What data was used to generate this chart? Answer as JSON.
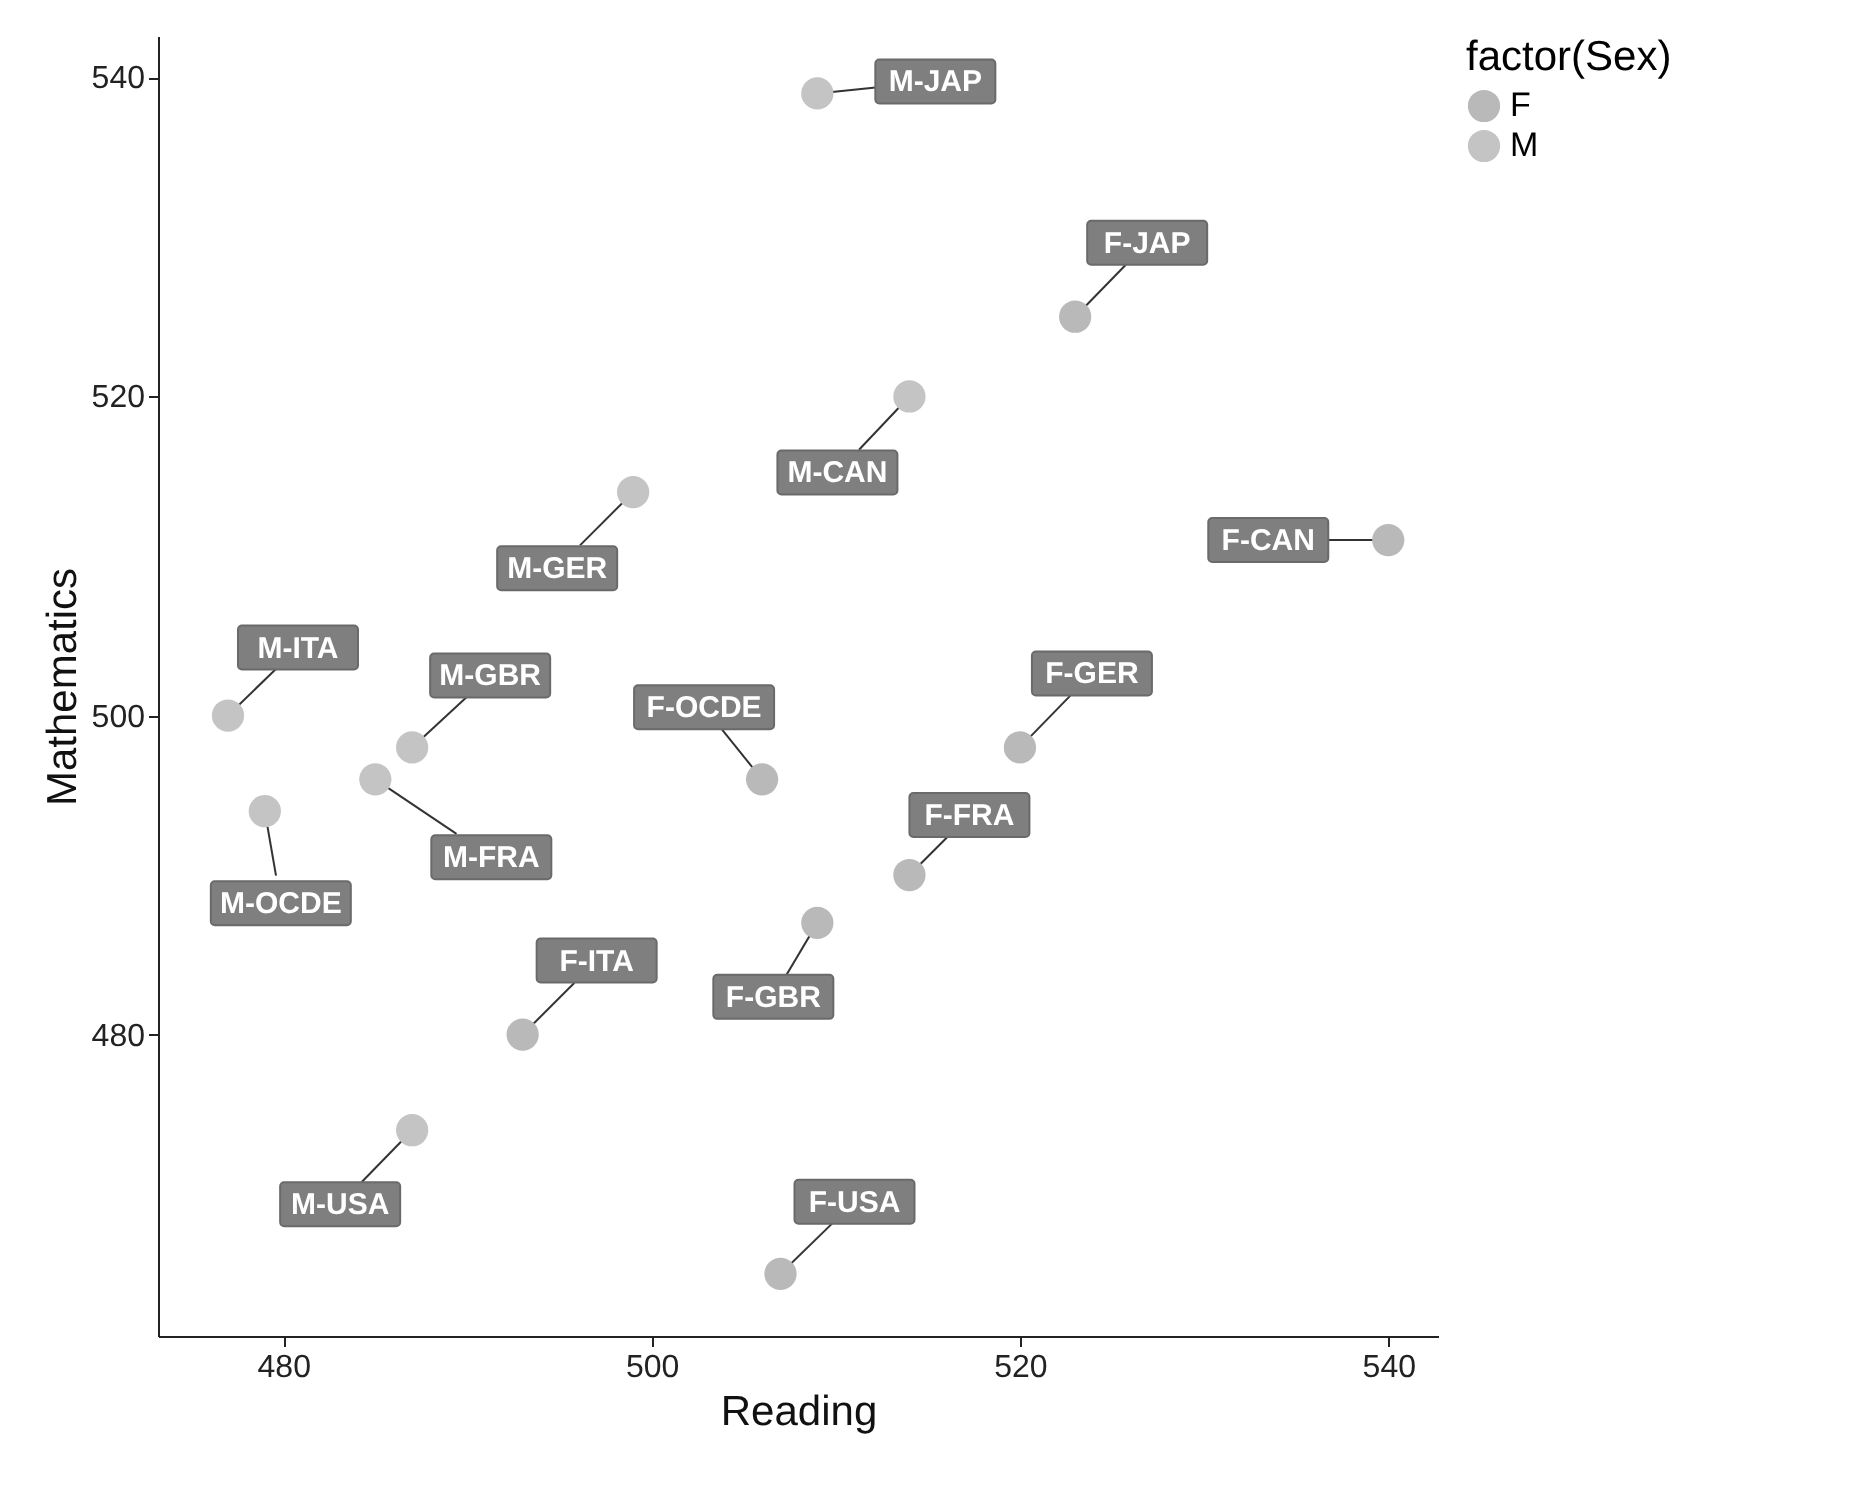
{
  "chart_data": {
    "type": "scatter",
    "xlabel": "Reading",
    "ylabel": "Mathematics",
    "legend_title": "factor(Sex)",
    "legend": "right",
    "marker": "circle",
    "grid": false,
    "xlim": [
      473.2,
      542.7
    ],
    "xticks": [
      480,
      500,
      520,
      540
    ],
    "ylim": [
      461.1,
      542.6
    ],
    "yticks": [
      480,
      500,
      520,
      540
    ],
    "series": [
      {
        "name": "F",
        "color": "#b9b9b9",
        "x": [
          523,
          540,
          506,
          520,
          514,
          509,
          493,
          507
        ],
        "values": [
          525,
          511,
          496,
          498,
          490,
          487,
          480,
          465
        ]
      },
      {
        "name": "M",
        "color": "#c4c4c4",
        "x": [
          509,
          514,
          499,
          477,
          487,
          485,
          479,
          487
        ],
        "values": [
          539,
          520,
          514,
          500,
          498,
          496,
          494,
          474
        ]
      }
    ],
    "annotations": [
      {
        "text": "F-JAP",
        "x": 523,
        "y": 525
      },
      {
        "text": "F-CAN",
        "x": 540,
        "y": 511
      },
      {
        "text": "F-OCDE",
        "x": 506,
        "y": 496
      },
      {
        "text": "F-GER",
        "x": 520,
        "y": 498
      },
      {
        "text": "F-FRA",
        "x": 514,
        "y": 490
      },
      {
        "text": "F-GBR",
        "x": 509,
        "y": 487
      },
      {
        "text": "F-ITA",
        "x": 493,
        "y": 480
      },
      {
        "text": "F-USA",
        "x": 507,
        "y": 465
      },
      {
        "text": "M-JAP",
        "x": 509,
        "y": 539
      },
      {
        "text": "M-CAN",
        "x": 514,
        "y": 520
      },
      {
        "text": "M-GER",
        "x": 499,
        "y": 514
      },
      {
        "text": "M-ITA",
        "x": 477,
        "y": 500
      },
      {
        "text": "M-GBR",
        "x": 487,
        "y": 498
      },
      {
        "text": "M-FRA",
        "x": 485,
        "y": 496
      },
      {
        "text": "M-OCDE",
        "x": 479,
        "y": 494
      },
      {
        "text": "M-USA",
        "x": 487,
        "y": 474
      }
    ]
  }
}
